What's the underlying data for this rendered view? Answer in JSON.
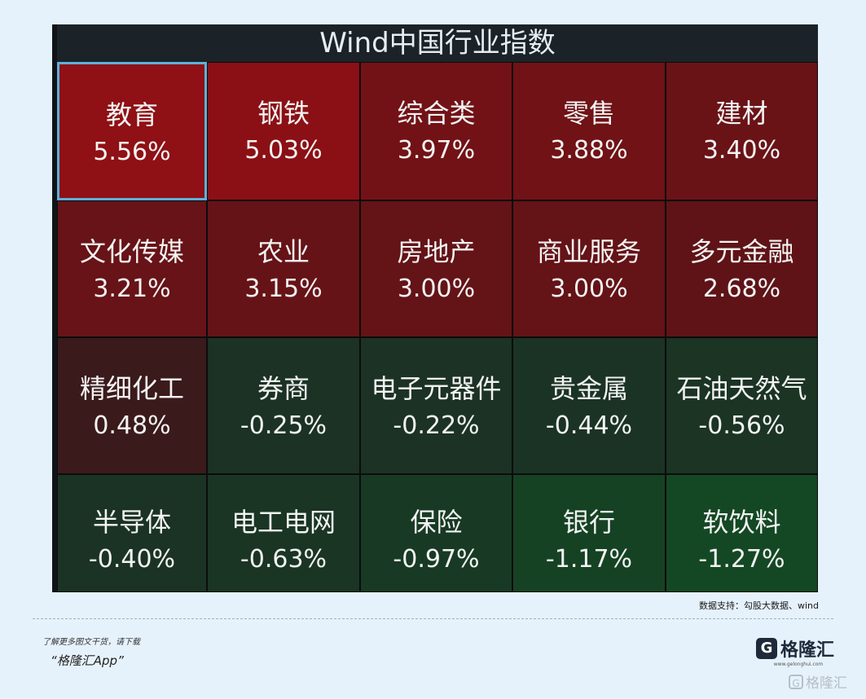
{
  "chart_data": {
    "type": "heatmap",
    "title": "Wind中国行业指数",
    "unit": "%",
    "cells": [
      {
        "name": "教育",
        "value": 5.56,
        "label": "5.56%",
        "color": "#8f1015",
        "selected": true
      },
      {
        "name": "钢铁",
        "value": 5.03,
        "label": "5.03%",
        "color": "#8b1015"
      },
      {
        "name": "综合类",
        "value": 3.97,
        "label": "3.97%",
        "color": "#721216"
      },
      {
        "name": "零售",
        "value": 3.88,
        "label": "3.88%",
        "color": "#701216"
      },
      {
        "name": "建材",
        "value": 3.4,
        "label": "3.40%",
        "color": "#6a1317"
      },
      {
        "name": "文化传媒",
        "value": 3.21,
        "label": "3.21%",
        "color": "#671317"
      },
      {
        "name": "农业",
        "value": 3.15,
        "label": "3.15%",
        "color": "#661317"
      },
      {
        "name": "房地产",
        "value": 3.0,
        "label": "3.00%",
        "color": "#641317"
      },
      {
        "name": "商业服务",
        "value": 3.0,
        "label": "3.00%",
        "color": "#641317"
      },
      {
        "name": "多元金融",
        "value": 2.68,
        "label": "2.68%",
        "color": "#5f1317"
      },
      {
        "name": "精细化工",
        "value": 0.48,
        "label": "0.48%",
        "color": "#3b1a1c"
      },
      {
        "name": "券商",
        "value": -0.25,
        "label": "-0.25%",
        "color": "#1c3224"
      },
      {
        "name": "电子元器件",
        "value": -0.22,
        "label": "-0.22%",
        "color": "#1c3224"
      },
      {
        "name": "贵金属",
        "value": -0.44,
        "label": "-0.44%",
        "color": "#1b3324"
      },
      {
        "name": "石油天然气",
        "value": -0.56,
        "label": "-0.56%",
        "color": "#1b3424"
      },
      {
        "name": "半导体",
        "value": -0.4,
        "label": "-0.40%",
        "color": "#1b3324"
      },
      {
        "name": "电工电网",
        "value": -0.63,
        "label": "-0.63%",
        "color": "#1a3524"
      },
      {
        "name": "保险",
        "value": -0.97,
        "label": "-0.97%",
        "color": "#183a24"
      },
      {
        "name": "银行",
        "value": -1.17,
        "label": "-1.17%",
        "color": "#164224"
      },
      {
        "name": "软饮料",
        "value": -1.27,
        "label": "-1.27%",
        "color": "#144824"
      }
    ]
  },
  "footer": {
    "source": "数据支持：勾股大数据、wind",
    "promo_line": "了解更多图文干货，请下载",
    "promo_app": "“格隆汇App”",
    "logo_mark": "G",
    "logo_text": "格隆汇",
    "logo_sub": "www.gelonghui.com",
    "watermark_mark": "G",
    "watermark_text": "格隆汇"
  }
}
